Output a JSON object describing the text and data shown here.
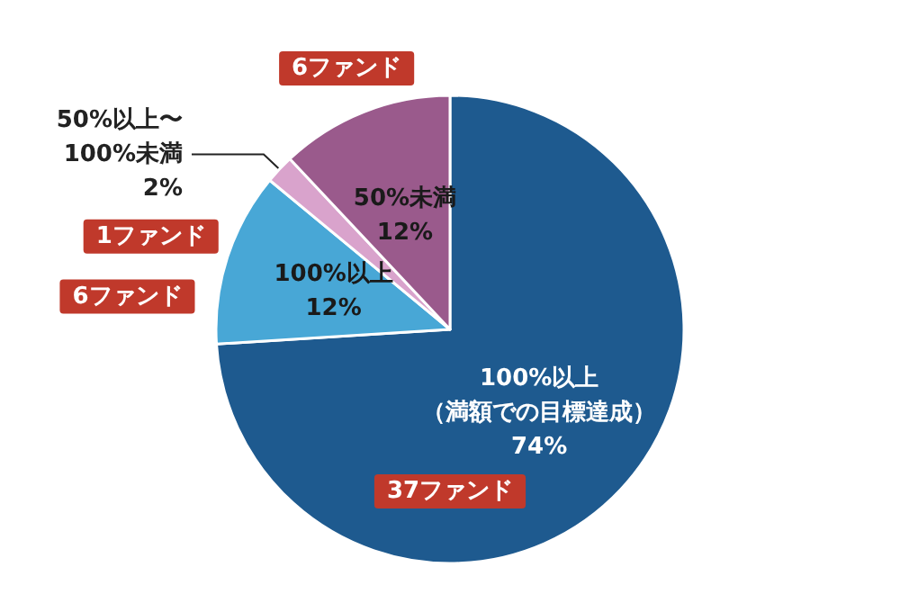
{
  "chart_data": {
    "type": "pie",
    "categories": [
      "100%以上（満額での目標達成）",
      "100%以上",
      "50%以上〜100%未満",
      "50%未満"
    ],
    "values": [
      74,
      12,
      2,
      12
    ],
    "value_labels": [
      "74%",
      "12%",
      "2%",
      "12%"
    ],
    "colors": [
      "#1e5a8f",
      "#48a7d6",
      "#d9a3cc",
      "#9a5a8c"
    ],
    "annotations": [
      "37ファンド",
      "6ファンド",
      "1ファンド",
      "6ファンド"
    ],
    "legend": false
  }
}
